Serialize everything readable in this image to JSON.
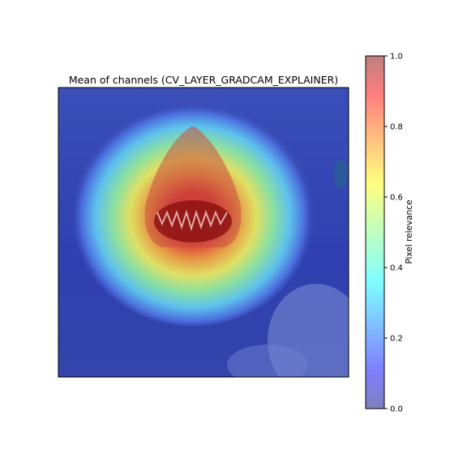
{
  "chart_data": {
    "type": "heatmap",
    "title": "Mean of channels (CV_LAYER_GRADCAM_EXPLAINER)",
    "background": "photo of a shark bursting out of the water, overlaid by a relevance heatmap (jet colormap, alpha 0.5)",
    "heatmap": {
      "colormap": "jet",
      "alpha": 0.5,
      "peak_region": "shark head and open mouth",
      "peak_value": 1.0,
      "background_value": 0.05
    },
    "axes": {
      "ticks_visible": false,
      "xlabel": "",
      "ylabel": ""
    },
    "colorbar": {
      "label": "Pixel relevance",
      "range": [
        0.0,
        1.0
      ],
      "ticks": [
        0.0,
        0.2,
        0.4,
        0.6,
        0.8,
        1.0
      ],
      "tick_labels": [
        "0.0",
        "0.2",
        "0.4",
        "0.6",
        "0.8",
        "1.0"
      ],
      "colors": {
        "0.0": "#7f7fbf",
        "0.1": "#7f7fff",
        "0.35": "#7fffff",
        "0.5": "#bfffbf",
        "0.65": "#ffff7f",
        "0.9": "#ff7f7f",
        "1.0": "#bf7f7f"
      }
    }
  }
}
